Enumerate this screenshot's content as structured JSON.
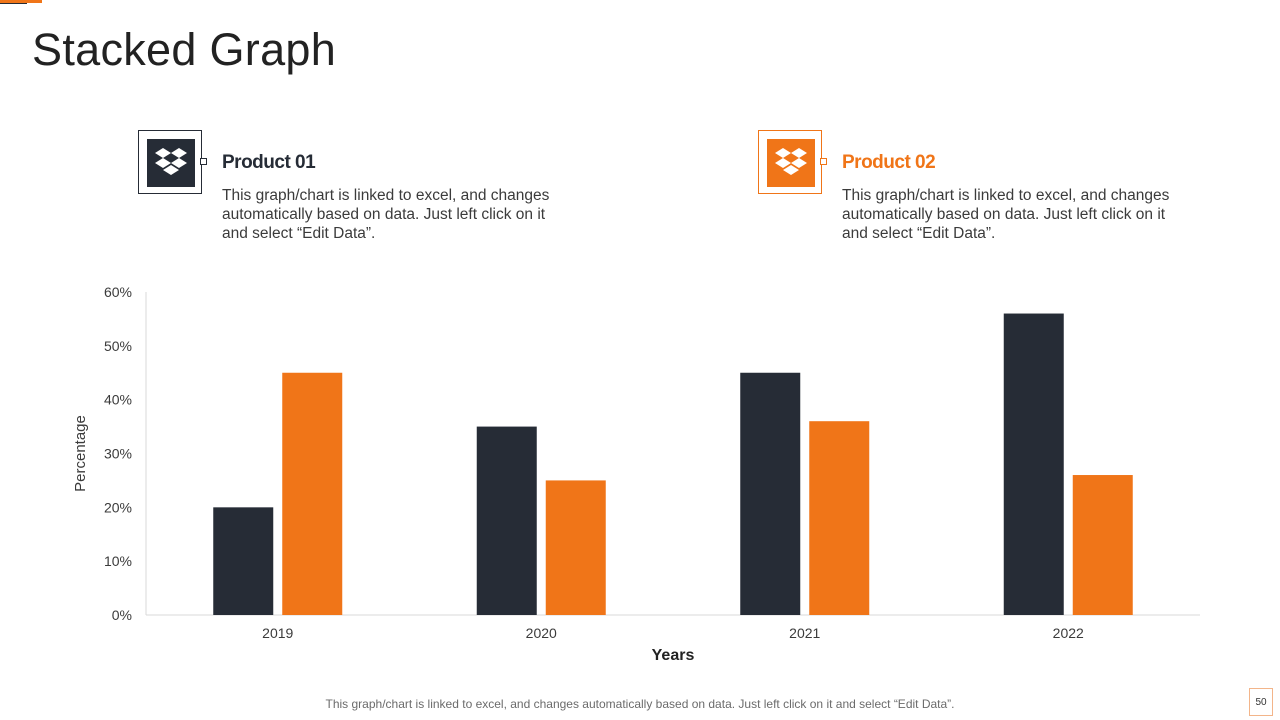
{
  "slide": {
    "title": "Stacked Graph",
    "footer_note": "This graph/chart is linked to excel, and changes automatically based on data. Just left click on it and select “Edit Data”.",
    "page_number": "50"
  },
  "products": [
    {
      "title": "Product 01",
      "description": "This graph/chart is linked to excel, and changes automatically based on data. Just left click on it and select “Edit Data”.",
      "icon": "dropbox-icon",
      "color": "#262c36"
    },
    {
      "title": "Product 02",
      "description": "This graph/chart is linked to excel, and changes automatically based on data. Just left click on it and select “Edit Data”.",
      "icon": "dropbox-icon",
      "color": "#f07518"
    }
  ],
  "colors": {
    "accent": "#f07518",
    "dark": "#262c36"
  },
  "chart_data": {
    "type": "bar",
    "categories": [
      "2019",
      "2020",
      "2021",
      "2022"
    ],
    "series": [
      {
        "name": "Product 01",
        "values": [
          20,
          35,
          45,
          56
        ],
        "color": "#262c36"
      },
      {
        "name": "Product 02",
        "values": [
          45,
          25,
          36,
          26
        ],
        "color": "#f07518"
      }
    ],
    "xlabel": "Years",
    "ylabel": "Percentage",
    "ylim": [
      0,
      60
    ],
    "yticks": [
      0,
      10,
      20,
      30,
      40,
      50,
      60
    ],
    "ytick_labels": [
      "0%",
      "10%",
      "20%",
      "30%",
      "40%",
      "50%",
      "60%"
    ],
    "grid": false
  }
}
